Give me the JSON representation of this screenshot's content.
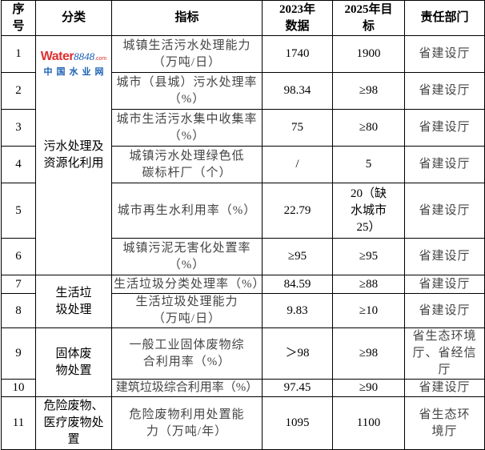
{
  "headers": {
    "no": "序号",
    "category": "分类",
    "indicator": "指标",
    "y2023": "2023年数据",
    "y2025": "2025年目标",
    "dept": "责任部门"
  },
  "categories": {
    "c1": "污水处理及资源化利用",
    "c2": "生活垃圾处理",
    "c3": "固体废物处置",
    "c4": "危险废物、医疗废物处置"
  },
  "rows": [
    {
      "no": "1",
      "indicator": "城镇生活污水处理能力（万吨/日）",
      "v2023": "1740",
      "v2025": "1900",
      "dept": "省建设厅"
    },
    {
      "no": "2",
      "indicator": "城市（县城）污水处理率（%）",
      "v2023": "98.34",
      "v2025": "≥98",
      "dept": "省建设厅"
    },
    {
      "no": "3",
      "indicator": "城市生活污水集中收集率（%）",
      "v2023": "75",
      "v2025": "≥80",
      "dept": "省建设厅"
    },
    {
      "no": "4",
      "indicator": "城镇污水处理绿色低碳标杆厂（个）",
      "v2023": "/",
      "v2025": "5",
      "dept": "省建设厅"
    },
    {
      "no": "5",
      "indicator": "城市再生水利用率（%）",
      "v2023": "22.79",
      "v2025": "20（缺水城市25）",
      "dept": "省建设厅"
    },
    {
      "no": "6",
      "indicator": "城镇污泥无害化处置率（%）",
      "v2023": "≥95",
      "v2025": "≥95",
      "dept": "省建设厅"
    },
    {
      "no": "7",
      "indicator": "生活垃圾分类处理率（%）",
      "v2023": "84.59",
      "v2025": "≥88",
      "dept": "省建设厅"
    },
    {
      "no": "8",
      "indicator": "生活垃圾处理能力（万吨/日）",
      "v2023": "9.83",
      "v2025": "≥10",
      "dept": "省建设厅"
    },
    {
      "no": "9",
      "indicator": "一般工业固体废物综合利用率（%）",
      "v2023": "＞98",
      "v2025": "≥98",
      "dept": "省生态环境厅、省经信厅"
    },
    {
      "no": "10",
      "indicator": "建筑垃圾综合利用率（%）",
      "v2023": "97.45",
      "v2025": "≥90",
      "dept": "省建设厅"
    },
    {
      "no": "11",
      "indicator": "危险废物利用处置能力（万吨/年）",
      "v2023": "1095",
      "v2025": "1100",
      "dept": "省生态环境厅"
    }
  ],
  "watermark": {
    "brand": "Water",
    "num": "8848",
    "com": ".com",
    "cn": "中国水业网"
  }
}
